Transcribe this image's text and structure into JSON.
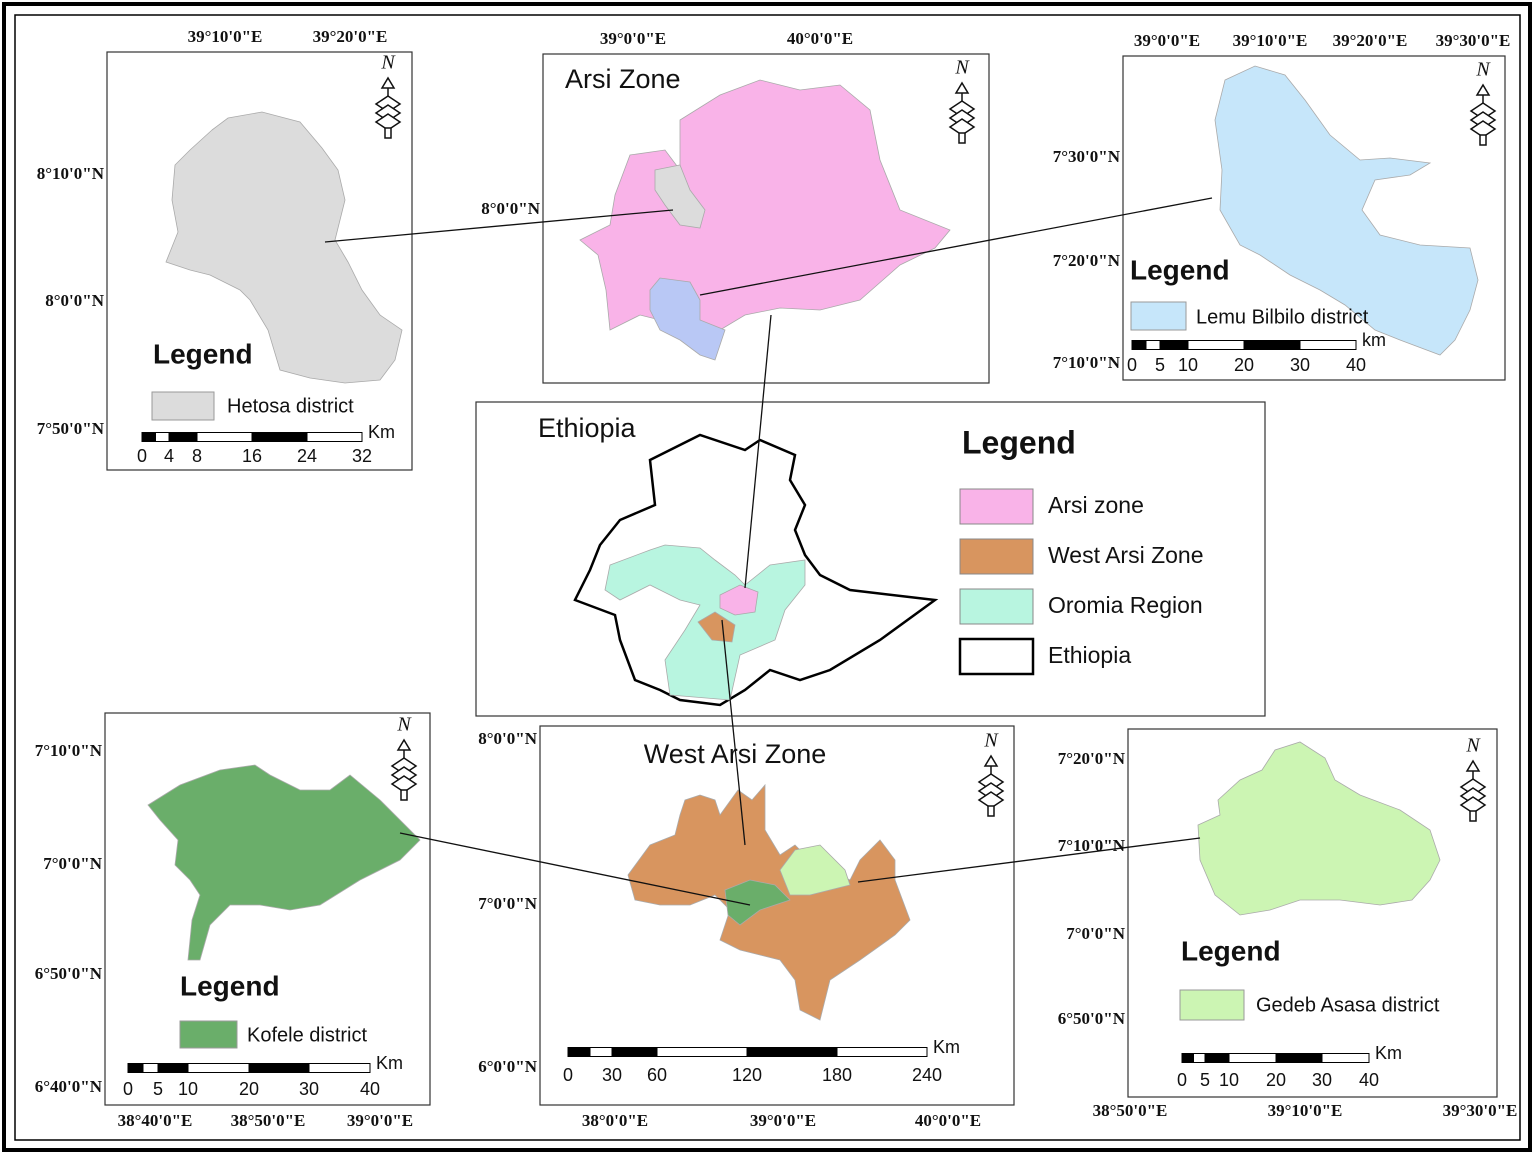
{
  "panels": {
    "hetosa": {
      "north": "N",
      "top_labels": [
        "39°10'0\"E",
        "39°20'0\"E"
      ],
      "left_labels": [
        "8°10'0\"N",
        "8°0'0\"N",
        "7°50'0\"N"
      ],
      "legend": {
        "title": "Legend",
        "item": "Hetosa district"
      },
      "scale": {
        "unit": "Km",
        "ticks": [
          0,
          4,
          8,
          16,
          24,
          32
        ]
      }
    },
    "arsi": {
      "title": "Arsi Zone",
      "north": "N",
      "top_labels": [
        "39°0'0\"E",
        "40°0'0\"E"
      ],
      "left_labels": [
        "8°0'0\"N"
      ]
    },
    "lemu": {
      "north": "N",
      "top_labels": [
        "39°0'0\"E",
        "39°10'0\"E",
        "39°20'0\"E",
        "39°30'0\"E"
      ],
      "left_labels": [
        "7°30'0\"N",
        "7°20'0\"N",
        "7°10'0\"N"
      ],
      "legend": {
        "title": "Legend",
        "item": "Lemu Bilbilo district"
      },
      "scale": {
        "unit": "km",
        "ticks": [
          0,
          5,
          10,
          20,
          30,
          40
        ]
      }
    },
    "ethiopia": {
      "title": "Ethiopia",
      "legend": {
        "title": "Legend",
        "items": [
          "Arsi zone",
          "West Arsi Zone",
          "Oromia Region",
          "Ethiopia"
        ]
      }
    },
    "kofele": {
      "north": "N",
      "left_labels": [
        "7°10'0\"N",
        "7°0'0\"N",
        "6°50'0\"N",
        "6°40'0\"N"
      ],
      "bottom_labels": [
        "38°40'0\"E",
        "38°50'0\"E",
        "39°0'0\"E"
      ],
      "legend": {
        "title": "Legend",
        "item": "Kofele district"
      },
      "scale": {
        "unit": "Km",
        "ticks": [
          0,
          5,
          10,
          20,
          30,
          40
        ]
      }
    },
    "west_arsi": {
      "title": "West  Arsi Zone",
      "north": "N",
      "left_labels": [
        "8°0'0\"N",
        "7°0'0\"N",
        "6°0'0\"N"
      ],
      "bottom_labels": [
        "38°0'0\"E",
        "39°0'0\"E",
        "40°0'0\"E"
      ],
      "scale": {
        "unit": "Km",
        "ticks": [
          0,
          30,
          60,
          120,
          180,
          240
        ]
      }
    },
    "gedeb": {
      "north": "N",
      "left_labels": [
        "7°20'0\"N",
        "7°10'0\"N",
        "7°0'0\"N",
        "6°50'0\"N"
      ],
      "bottom_labels": [
        "38°50'0\"E",
        "39°10'0\"E",
        "39°30'0\"E"
      ],
      "legend": {
        "title": "Legend",
        "item": "Gedeb Asasa district"
      },
      "scale": {
        "unit": "Km",
        "ticks": [
          0,
          5,
          10,
          20,
          30,
          40
        ]
      }
    }
  }
}
